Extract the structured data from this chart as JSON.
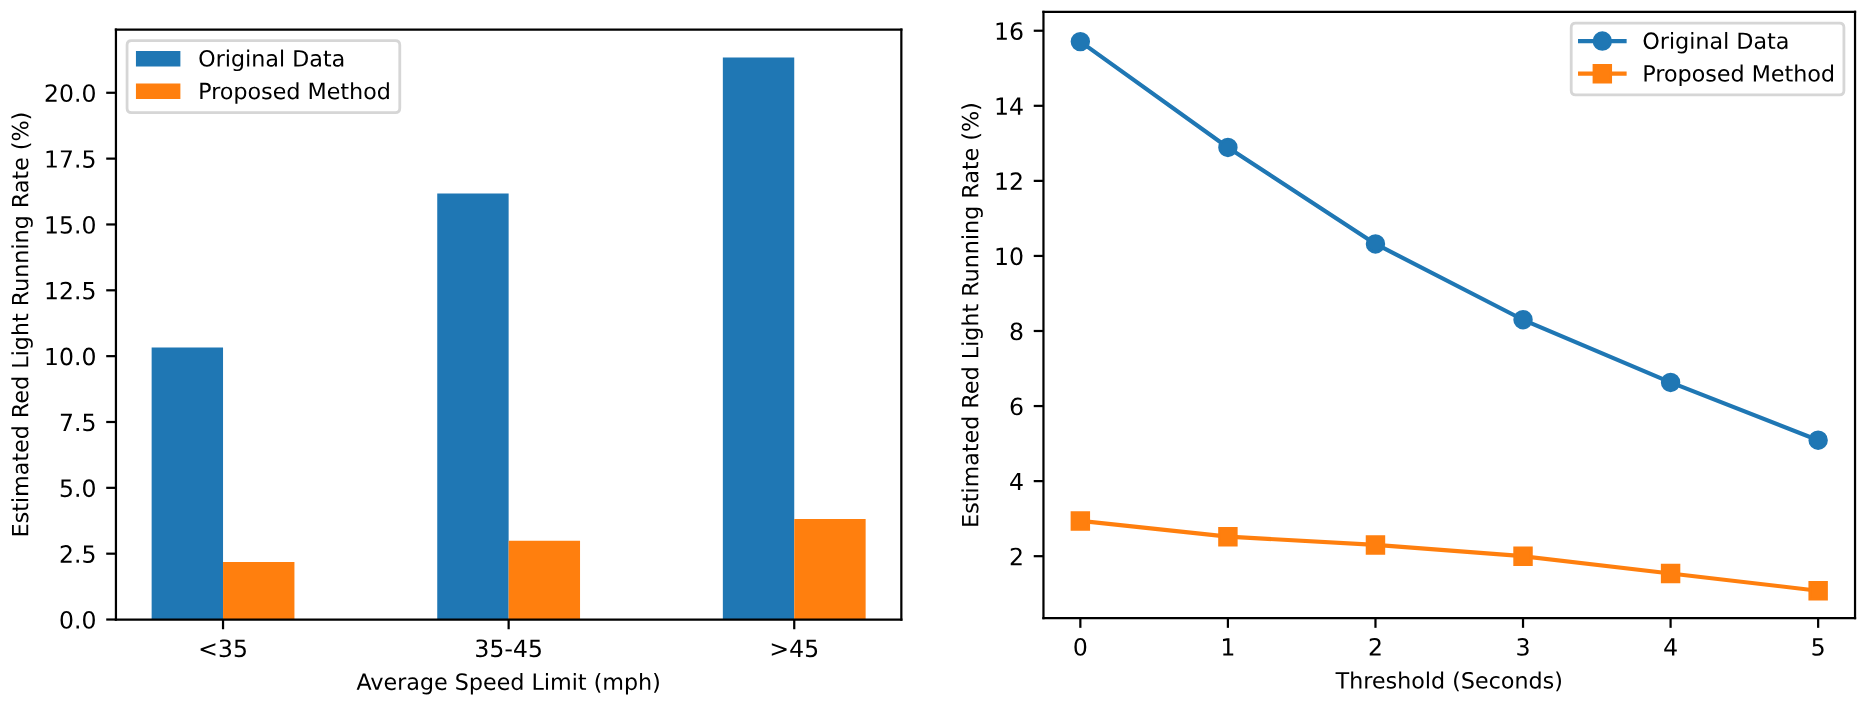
{
  "chart_data": [
    {
      "type": "bar",
      "xlabel": "Average Speed Limit (mph)",
      "ylabel": "Estimated Red Light Running Rate (%)",
      "categories": [
        "<35",
        "35-45",
        ">45"
      ],
      "series": [
        {
          "name": "Original Data",
          "color": "#1f77b4",
          "values": [
            10.33,
            16.18,
            21.34
          ]
        },
        {
          "name": "Proposed Method",
          "color": "#ff7f0e",
          "values": [
            2.18,
            2.99,
            3.82
          ]
        }
      ],
      "ylim": [
        0,
        22.4
      ],
      "yticks": [
        {
          "value": 0,
          "label": "0.0"
        },
        {
          "value": 2.5,
          "label": "2.5"
        },
        {
          "value": 5,
          "label": "5.0"
        },
        {
          "value": 7.5,
          "label": "7.5"
        },
        {
          "value": 10,
          "label": "10.0"
        },
        {
          "value": 12.5,
          "label": "12.5"
        },
        {
          "value": 15,
          "label": "15.0"
        },
        {
          "value": 17.5,
          "label": "17.5"
        },
        {
          "value": 20,
          "label": "20.0"
        }
      ],
      "legend": "top left"
    },
    {
      "type": "line",
      "xlabel": "Threshold (Seconds)",
      "ylabel": "Estimated Red Light Running Rate (%)",
      "x": [
        0,
        1,
        2,
        3,
        4,
        5
      ],
      "series": [
        {
          "name": "Original Data",
          "color": "#1f77b4",
          "marker": "circle",
          "values": [
            15.71,
            12.89,
            10.32,
            8.3,
            6.63,
            5.09
          ]
        },
        {
          "name": "Proposed Method",
          "color": "#ff7f0e",
          "marker": "square",
          "values": [
            2.94,
            2.52,
            2.3,
            2.0,
            1.54,
            1.08
          ]
        }
      ],
      "xlim": [
        -0.25,
        5.25
      ],
      "xticks": [
        0,
        1,
        2,
        3,
        4,
        5
      ],
      "ylim": [
        0.35,
        16.5
      ],
      "yticks": [
        2,
        4,
        6,
        8,
        10,
        12,
        14,
        16
      ],
      "legend": "top right"
    }
  ]
}
